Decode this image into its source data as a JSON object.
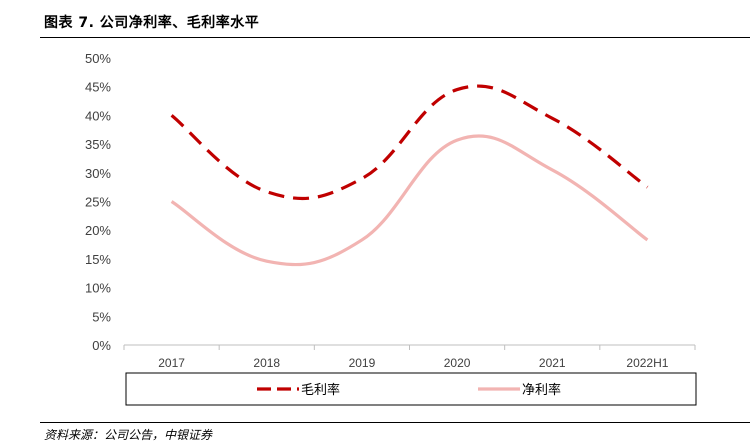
{
  "header": {
    "title": "图表 7. 公司净利率、毛利率水平"
  },
  "footer": {
    "source": "资料来源：公司公告，中银证券"
  },
  "chart_data": {
    "type": "line",
    "categories": [
      "2017",
      "2018",
      "2019",
      "2020",
      "2021",
      "2022H1"
    ],
    "series": [
      {
        "name": "毛利率",
        "values": [
          0.4,
          0.267,
          0.29,
          0.445,
          0.395,
          0.275
        ],
        "color": "#c00000",
        "style": "dashed"
      },
      {
        "name": "净利率",
        "values": [
          0.25,
          0.146,
          0.183,
          0.357,
          0.305,
          0.183
        ],
        "color": "#f2b4b2",
        "style": "solid"
      }
    ],
    "y_ticks": [
      "0%",
      "5%",
      "10%",
      "15%",
      "20%",
      "25%",
      "30%",
      "35%",
      "40%",
      "45%",
      "50%"
    ],
    "ylim": [
      0,
      0.5
    ],
    "grid": false,
    "legend_position": "bottom",
    "smooth": true
  }
}
